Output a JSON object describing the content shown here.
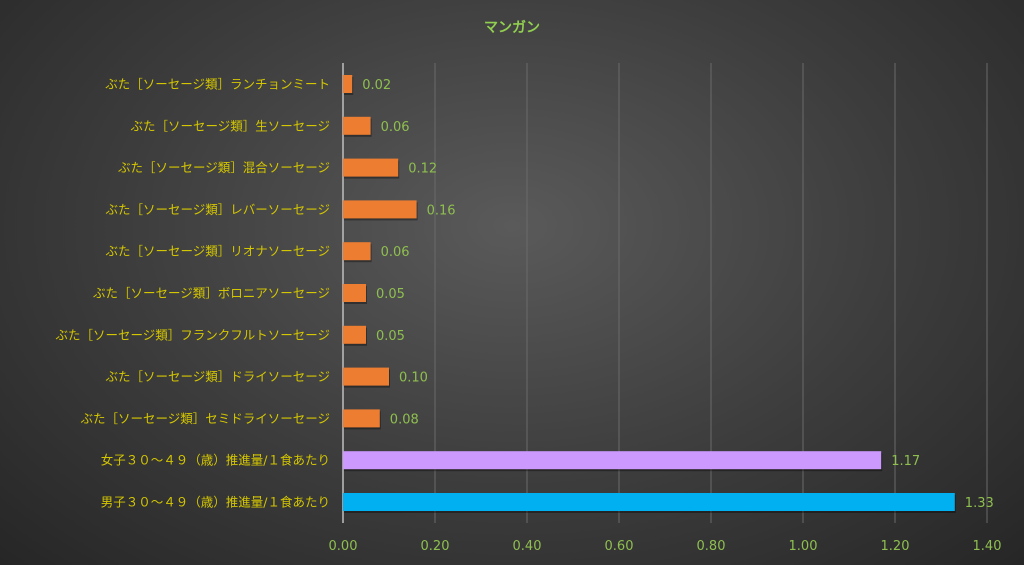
{
  "chart_data": {
    "type": "bar",
    "orientation": "horizontal",
    "title": "マンガン",
    "xlabel": "",
    "ylabel": "",
    "xlim": [
      0,
      1.4
    ],
    "x_ticks": [
      "0.00",
      "0.20",
      "0.40",
      "0.60",
      "0.80",
      "1.00",
      "1.20",
      "1.40"
    ],
    "grid": "vertical",
    "categories": [
      "ぶた［ソーセージ類］ランチョンミート",
      "ぶた［ソーセージ類］生ソーセージ",
      "ぶた［ソーセージ類］混合ソーセージ",
      "ぶた［ソーセージ類］レバーソーセージ",
      "ぶた［ソーセージ類］リオナソーセージ",
      "ぶた［ソーセージ類］ボロニアソーセージ",
      "ぶた［ソーセージ類］フランクフルトソーセージ",
      "ぶた［ソーセージ類］ドライソーセージ",
      "ぶた［ソーセージ類］セミドライソーセージ",
      "女子３０～４９（歳）推進量/１食あたり",
      "男子３０～４９（歳）推進量/１食あたり"
    ],
    "values": [
      0.02,
      0.06,
      0.12,
      0.16,
      0.06,
      0.05,
      0.05,
      0.1,
      0.08,
      1.17,
      1.33
    ],
    "value_labels": [
      "0.02",
      "0.06",
      "0.12",
      "0.16",
      "0.06",
      "0.05",
      "0.05",
      "0.10",
      "0.08",
      "1.17",
      "1.33"
    ],
    "colors": [
      "#ed7d31",
      "#ed7d31",
      "#ed7d31",
      "#ed7d31",
      "#ed7d31",
      "#ed7d31",
      "#ed7d31",
      "#ed7d31",
      "#ed7d31",
      "#cc99ff",
      "#00b0f0"
    ]
  }
}
